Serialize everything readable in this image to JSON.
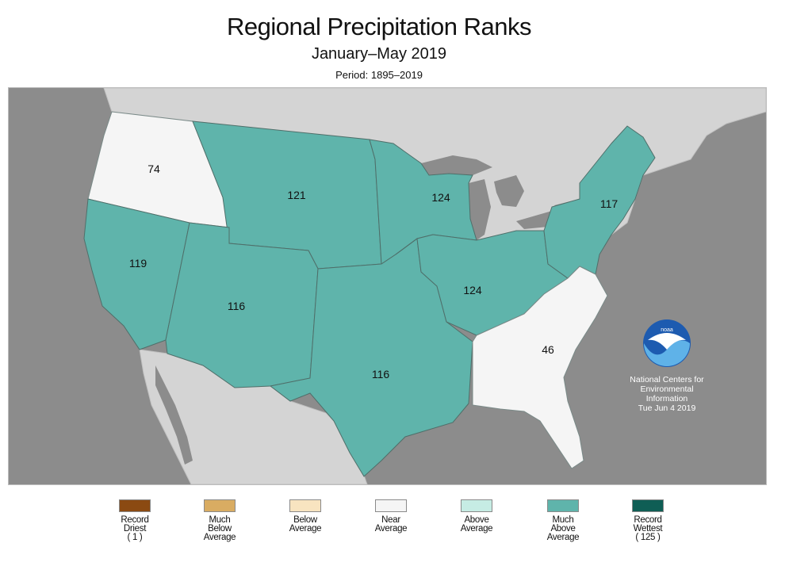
{
  "header": {
    "title": "Regional Precipitation Ranks",
    "subtitle": "January–May 2019",
    "period": "Period: 1895–2019"
  },
  "regions": {
    "northwest": {
      "rank": "74",
      "category": "Near Average"
    },
    "west": {
      "rank": "119",
      "category": "Much Above Average"
    },
    "northern_rockies_plains": {
      "rank": "121",
      "category": "Much Above Average"
    },
    "southwest": {
      "rank": "116",
      "category": "Much Above Average"
    },
    "upper_midwest": {
      "rank": "124",
      "category": "Much Above Average"
    },
    "south": {
      "rank": "116",
      "category": "Much Above Average"
    },
    "ohio_valley": {
      "rank": "124",
      "category": "Much Above Average"
    },
    "northeast": {
      "rank": "117",
      "category": "Much Above Average"
    },
    "southeast": {
      "rank": "46",
      "category": "Near Average"
    }
  },
  "credit": {
    "logo_text": "noaa",
    "line1": "National Centers for",
    "line2": "Environmental",
    "line3": "Information",
    "date": "Tue Jun  4 2019"
  },
  "legend": [
    {
      "label": "Record\nDriest\n( 1 )",
      "color": "#8b4a12"
    },
    {
      "label": "Much\nBelow\nAverage",
      "color": "#d9ac62"
    },
    {
      "label": "Below\nAverage",
      "color": "#f8e4c0"
    },
    {
      "label": "Near\nAverage",
      "color": "#f5f5f5"
    },
    {
      "label": "Above\nAverage",
      "color": "#c6ece4"
    },
    {
      "label": "Much\nAbove\nAverage",
      "color": "#5fb4ab"
    },
    {
      "label": "Record\nWettest\n( 125 )",
      "color": "#0f5e55"
    }
  ],
  "colors": {
    "ocean": "#8c8c8c",
    "land_outside": "#d4d4d4",
    "much_above": "#5fb4ab",
    "near_average": "#f5f5f5",
    "boundary": "#4f6f6a"
  }
}
